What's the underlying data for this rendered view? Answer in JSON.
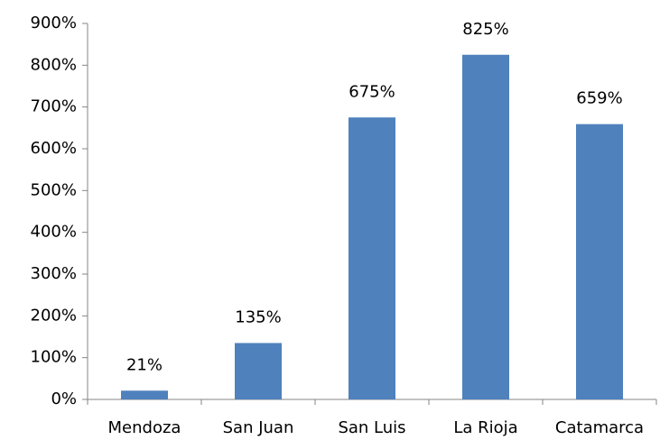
{
  "chart_data": {
    "type": "bar",
    "categories": [
      "Mendoza",
      "San Juan",
      "San Luis",
      "La Rioja",
      "Catamarca"
    ],
    "values": [
      21,
      135,
      675,
      825,
      659
    ],
    "value_labels": [
      "21%",
      "135%",
      "675%",
      "825%",
      "659%"
    ],
    "color": "#4f81bd",
    "ylim": [
      0,
      900
    ],
    "yticks": [
      {
        "value": 0,
        "label": "0%"
      },
      {
        "value": 100,
        "label": "100%"
      },
      {
        "value": 200,
        "label": "200%"
      },
      {
        "value": 300,
        "label": "300%"
      },
      {
        "value": 400,
        "label": "400%"
      },
      {
        "value": 500,
        "label": "500%"
      },
      {
        "value": 600,
        "label": "600%"
      },
      {
        "value": 700,
        "label": "700%"
      },
      {
        "value": 800,
        "label": "800%"
      },
      {
        "value": 900,
        "label": "900%"
      }
    ],
    "grid": false
  }
}
